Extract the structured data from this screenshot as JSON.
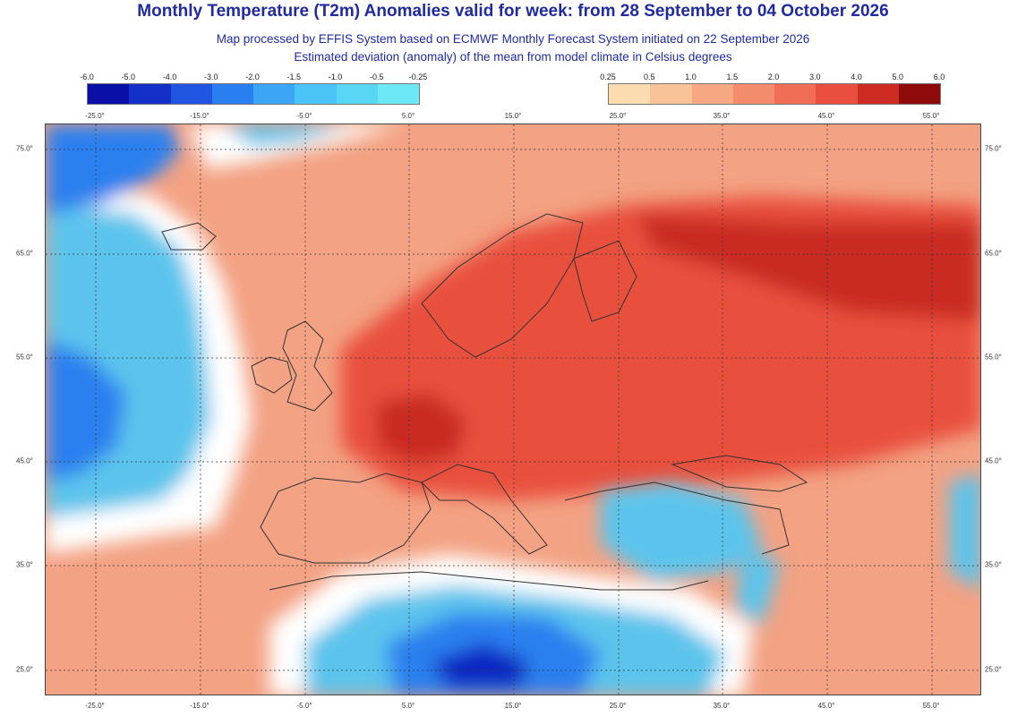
{
  "header": {
    "title": "Monthly Temperature (T2m) Anomalies valid for week: from 28 September to 04 October 2026",
    "subtitle1": "Map processed by EFFIS System based on ECMWF Monthly Forecast System initiated on 22 September 2026",
    "subtitle2": "Estimated deviation (anomaly) of the mean from model climate in Celsius degrees"
  },
  "legend": {
    "negative": {
      "labels": [
        "-6.0",
        "-5.0",
        "-4.0",
        "-3.0",
        "-2.0",
        "-1.5",
        "-1.0",
        "-0.5",
        "-0.25"
      ],
      "colors": [
        "#0a0fa8",
        "#1530c8",
        "#1f55e0",
        "#2a7ff0",
        "#3aa6f5",
        "#4cc3f7",
        "#5ad6f5",
        "#6de8f5"
      ]
    },
    "positive": {
      "labels": [
        "0.25",
        "0.5",
        "1.0",
        "1.5",
        "2.0",
        "3.0",
        "4.0",
        "5.0",
        "6.0"
      ],
      "colors": [
        "#fbdcae",
        "#f9c39a",
        "#f6a783",
        "#f38c6d",
        "#ef6e55",
        "#e94e3e",
        "#cc2a22",
        "#8f0b0b"
      ]
    }
  },
  "axes": {
    "top_lon": [
      "-25.0°",
      "-15.0°",
      "-5.0°",
      "5.0°",
      "15.0°",
      "25.0°",
      "35.0°",
      "45.0°",
      "55.0°"
    ],
    "bottom_lon": [
      "-25.0°",
      "-15.0°",
      "-5.0°",
      "5.0°",
      "15.0°",
      "25.0°",
      "35.0°",
      "45.0°",
      "55.0°"
    ],
    "lat": [
      "75.0°",
      "65.0°",
      "55.0°",
      "45.0°",
      "35.0°",
      "25.0°"
    ]
  },
  "map": {
    "ocean_color": "#5cc4ec",
    "land_color": "#f3a283",
    "hot_color": "#e9503e",
    "core_color": "#c92b22",
    "cold_color": "#2a80ef",
    "deep_cold_color": "#1126c2",
    "neutral_color": "#ffffff"
  }
}
